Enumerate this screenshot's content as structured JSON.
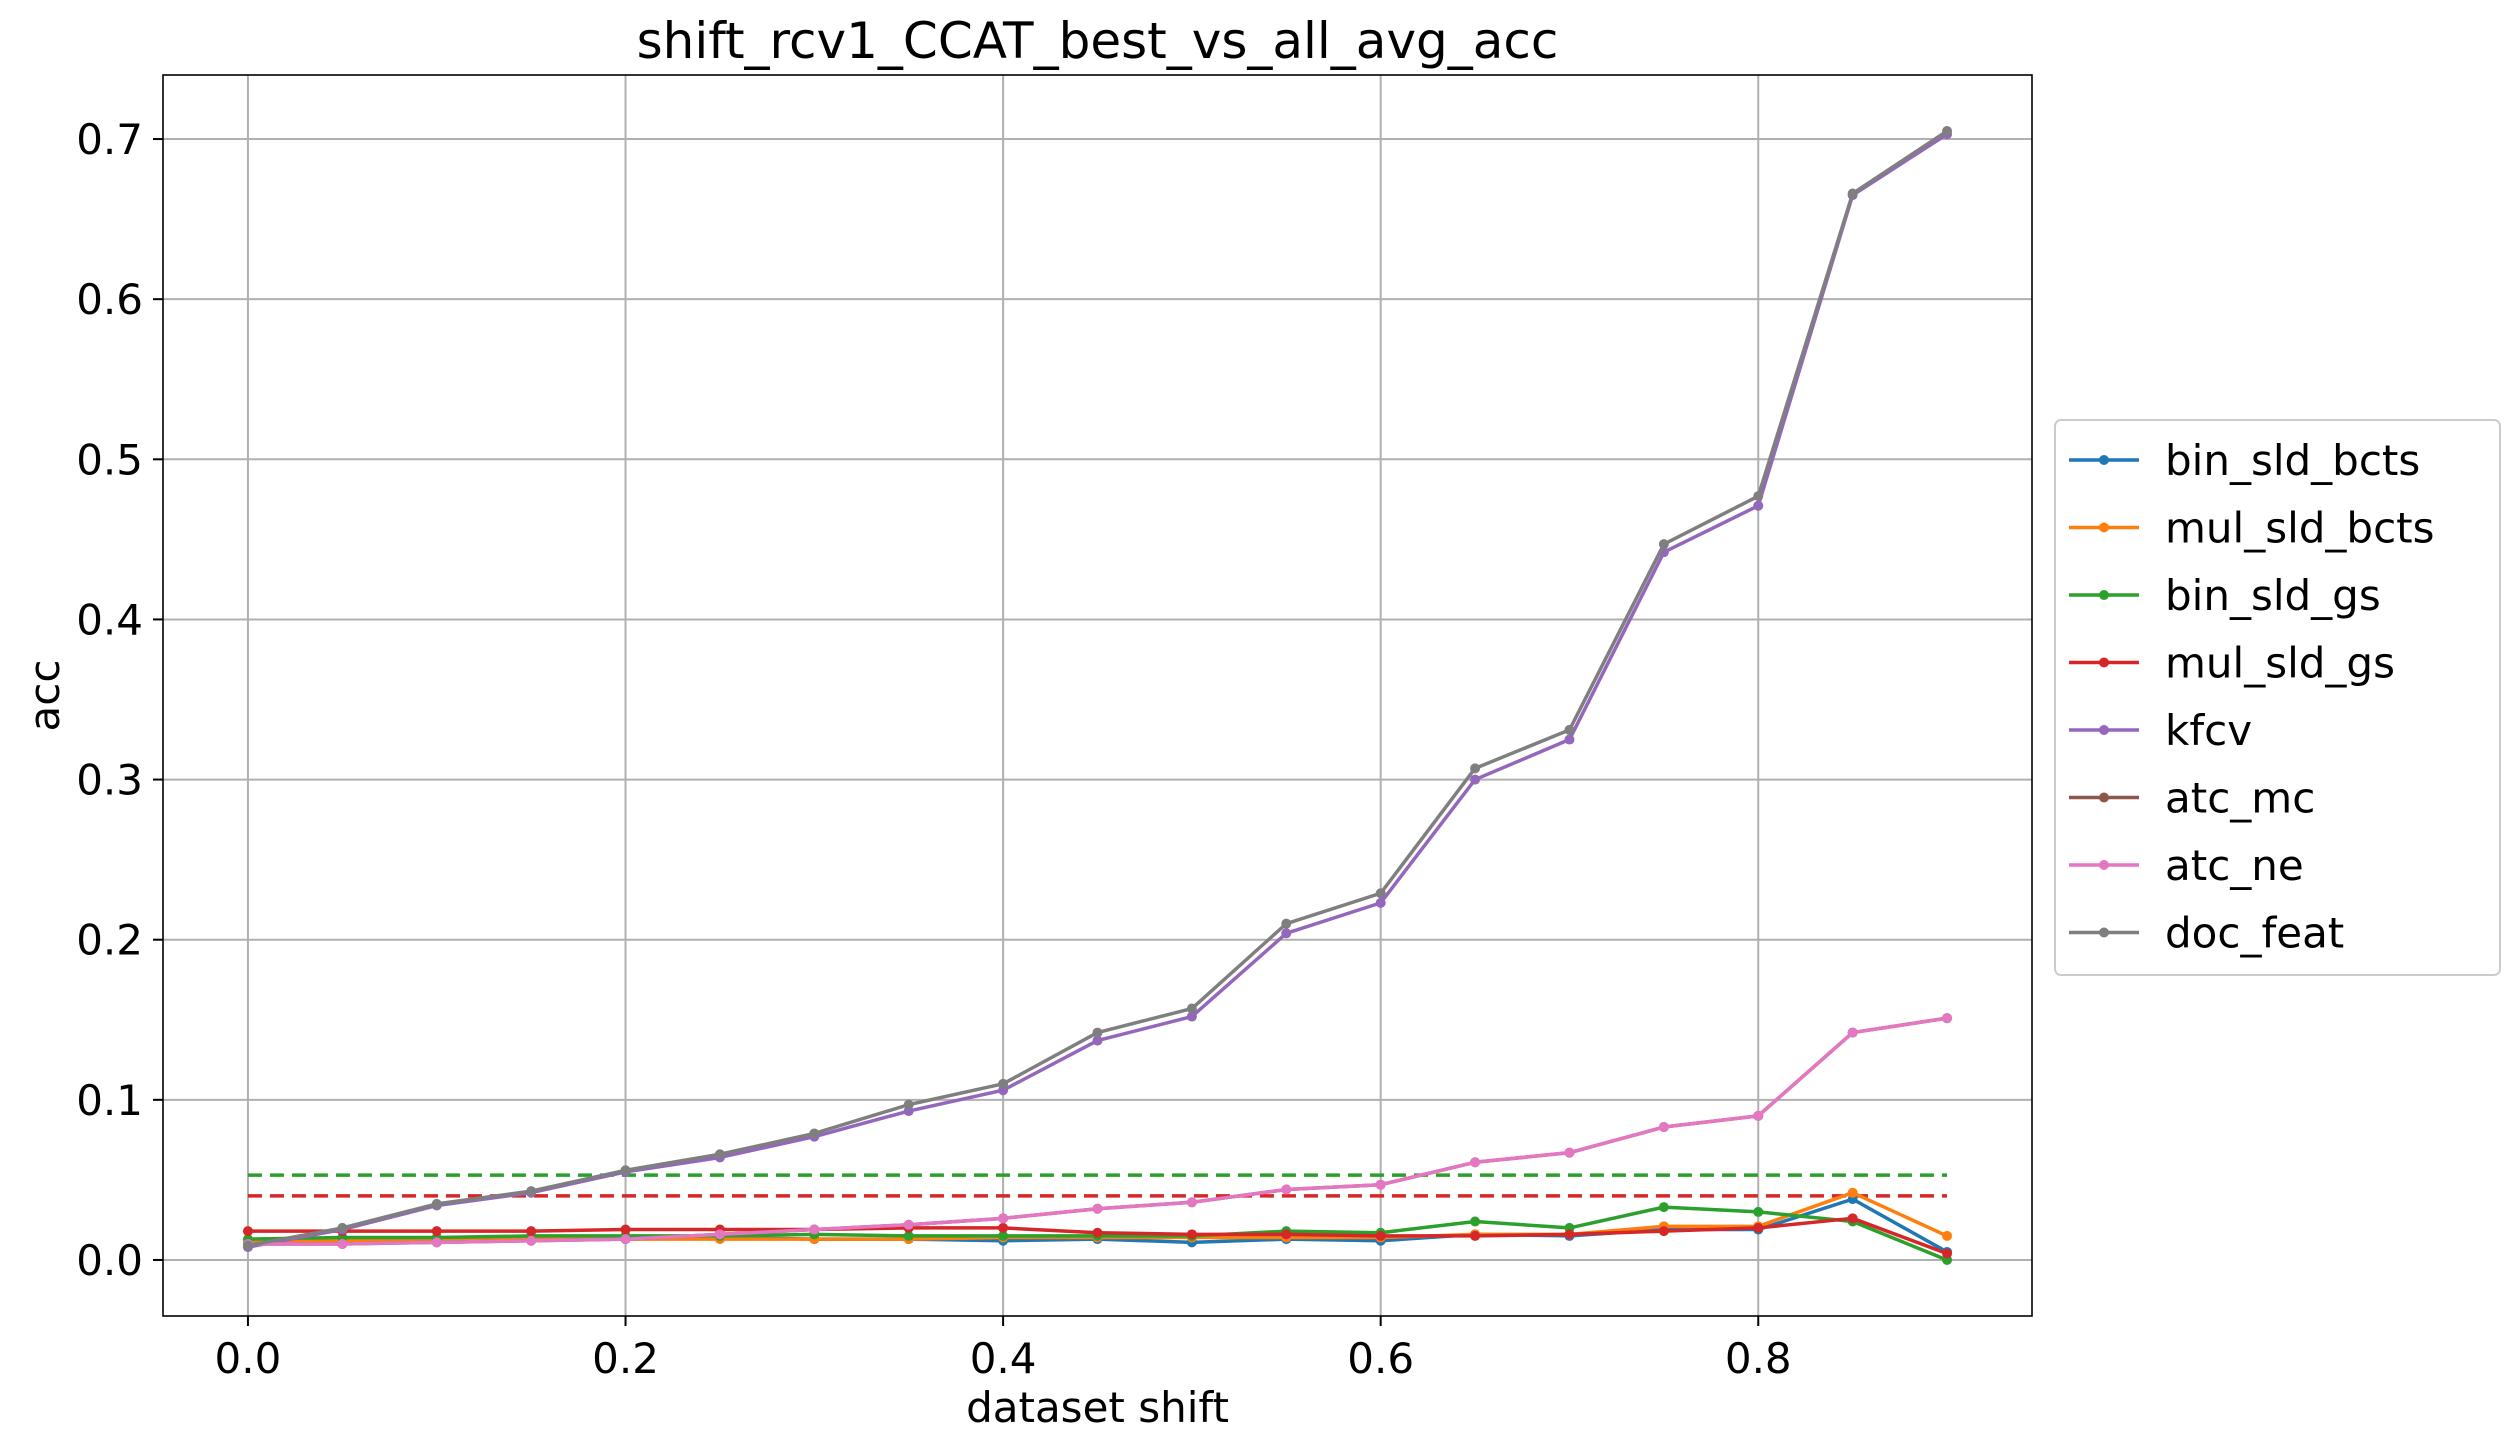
{
  "chart_data": {
    "type": "line",
    "title": "shift_rcv1_CCAT_best_vs_all_avg_acc",
    "xlabel": "dataset shift",
    "ylabel": "acc",
    "xlim": [
      -0.045,
      0.945
    ],
    "ylim": [
      -0.035,
      0.74
    ],
    "xticks": [
      0.0,
      0.2,
      0.4,
      0.6,
      0.8
    ],
    "xtick_labels": [
      "0.0",
      "0.2",
      "0.4",
      "0.6",
      "0.8"
    ],
    "yticks": [
      0.0,
      0.1,
      0.2,
      0.3,
      0.4,
      0.5,
      0.6,
      0.7
    ],
    "ytick_labels": [
      "0.0",
      "0.1",
      "0.2",
      "0.3",
      "0.4",
      "0.5",
      "0.6",
      "0.7"
    ],
    "grid": true,
    "legend_position": "right-outside",
    "x": [
      0.0,
      0.05,
      0.1,
      0.15,
      0.2,
      0.25,
      0.3,
      0.35,
      0.4,
      0.45,
      0.5,
      0.55,
      0.6,
      0.65,
      0.7,
      0.75,
      0.8,
      0.85,
      0.9
    ],
    "series": [
      {
        "name": "bin_sld_bcts",
        "color": "#1f77b4",
        "values": [
          0.01,
          0.011,
          0.012,
          0.013,
          0.013,
          0.014,
          0.013,
          0.013,
          0.012,
          0.013,
          0.011,
          0.013,
          0.012,
          0.016,
          0.015,
          0.019,
          0.019,
          0.038,
          0.005
        ]
      },
      {
        "name": "mul_sld_bcts",
        "color": "#ff7f0e",
        "values": [
          0.011,
          0.012,
          0.012,
          0.013,
          0.013,
          0.013,
          0.013,
          0.013,
          0.014,
          0.014,
          0.014,
          0.014,
          0.014,
          0.016,
          0.016,
          0.021,
          0.021,
          0.042,
          0.015
        ]
      },
      {
        "name": "bin_sld_gs",
        "color": "#2ca02c",
        "values": [
          0.013,
          0.014,
          0.014,
          0.015,
          0.015,
          0.015,
          0.016,
          0.015,
          0.015,
          0.015,
          0.015,
          0.018,
          0.017,
          0.024,
          0.02,
          0.033,
          0.03,
          0.024,
          0.0
        ]
      },
      {
        "name": "mul_sld_gs",
        "color": "#d62728",
        "values": [
          0.018,
          0.018,
          0.018,
          0.018,
          0.019,
          0.019,
          0.019,
          0.02,
          0.02,
          0.017,
          0.016,
          0.016,
          0.015,
          0.015,
          0.016,
          0.018,
          0.02,
          0.026,
          0.004
        ]
      },
      {
        "name": "kfcv",
        "color": "#9467bd",
        "values": [
          0.008,
          0.019,
          0.034,
          0.042,
          0.055,
          0.064,
          0.077,
          0.093,
          0.106,
          0.137,
          0.152,
          0.204,
          0.223,
          0.3,
          0.325,
          0.442,
          0.471,
          0.665,
          0.703
        ]
      },
      {
        "name": "atc_mc",
        "color": "#8c564b",
        "values": [
          0.01,
          0.01,
          0.011,
          0.012,
          0.013,
          0.016,
          0.019,
          0.022,
          0.026,
          0.032,
          0.036,
          0.044,
          0.047,
          0.061,
          0.067,
          0.083,
          0.09,
          0.142,
          0.151
        ]
      },
      {
        "name": "atc_ne",
        "color": "#e377c2",
        "values": [
          0.01,
          0.01,
          0.011,
          0.012,
          0.013,
          0.016,
          0.019,
          0.022,
          0.026,
          0.032,
          0.036,
          0.044,
          0.047,
          0.061,
          0.067,
          0.083,
          0.09,
          0.142,
          0.151
        ]
      },
      {
        "name": "doc_feat",
        "color": "#7f7f7f",
        "values": [
          0.009,
          0.02,
          0.035,
          0.043,
          0.056,
          0.066,
          0.079,
          0.097,
          0.11,
          0.142,
          0.157,
          0.21,
          0.229,
          0.307,
          0.331,
          0.447,
          0.477,
          0.666,
          0.705
        ]
      }
    ],
    "reference_lines": [
      {
        "color": "#2ca02c",
        "style": "dashed",
        "y": 0.053,
        "x_range": [
          0.0,
          0.9
        ]
      },
      {
        "color": "#d62728",
        "style": "dashed",
        "y": 0.04,
        "x_range": [
          0.0,
          0.9
        ]
      }
    ]
  }
}
